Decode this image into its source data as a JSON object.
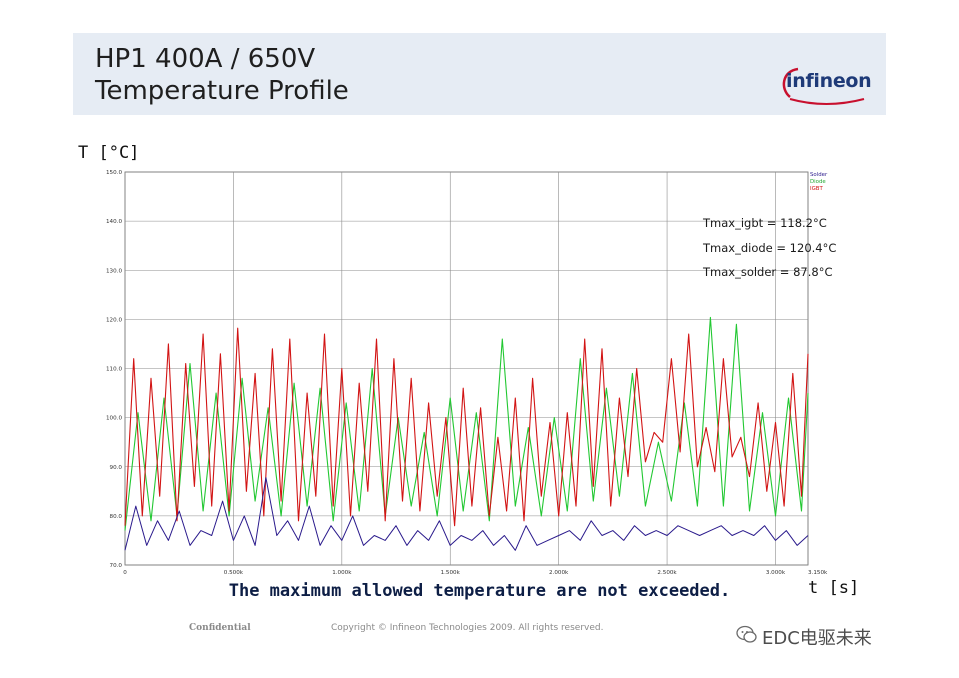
{
  "slide": {
    "title_line1": "HP1 400A / 650V",
    "title_line2": "Temperature Profile",
    "logo_text": "infineon",
    "caption": "The maximum allowed temperature are not exceeded.",
    "footer_confidential": "Confidential",
    "footer_copyright": "Copyright © Infineon Technologies 2009. All rights reserved.",
    "watermark": "EDC电驱未来",
    "y_unit_label": "T [°C]",
    "x_unit_label": "t [s]",
    "brand_color": "#1e3a78",
    "logo_arc_color": "#c8102e"
  },
  "chart_data": {
    "type": "line",
    "title": "HP1 400A / 650V Temperature Profile",
    "xlabel": "t [s]",
    "ylabel": "T [°C]",
    "xlim": [
      0,
      3150
    ],
    "ylim": [
      70,
      150
    ],
    "grid": true,
    "legend_position": "top-right",
    "yticks": [
      70,
      80,
      90,
      100,
      110,
      120,
      130,
      140,
      150
    ],
    "ytick_labels": [
      "70.0",
      "80.0",
      "90.0",
      "100.0",
      "110.0",
      "120.0",
      "130.0",
      "140.0",
      "150.0"
    ],
    "xticks": [
      0,
      500,
      1000,
      1500,
      2000,
      2500,
      3000,
      3150
    ],
    "xtick_labels": [
      "0",
      "0.500k",
      "1.000k",
      "1.500k",
      "2.000k",
      "2.500k",
      "3.000k",
      "3.150k"
    ],
    "legend": [
      "Solder",
      "Diode",
      "IGBT"
    ],
    "annotations": [
      "Tmax_igbt = 118.2°C",
      "Tmax_diode = 120.4°C",
      "Tmax_solder = 87.8°C"
    ],
    "series": [
      {
        "name": "IGBT",
        "color": "#d21414",
        "peak": 118.2,
        "x": [
          0,
          40,
          80,
          120,
          160,
          200,
          240,
          280,
          320,
          360,
          400,
          440,
          480,
          520,
          560,
          600,
          640,
          680,
          720,
          760,
          800,
          840,
          880,
          920,
          960,
          1000,
          1040,
          1080,
          1120,
          1160,
          1200,
          1240,
          1280,
          1320,
          1360,
          1400,
          1440,
          1480,
          1520,
          1560,
          1600,
          1640,
          1680,
          1720,
          1760,
          1800,
          1840,
          1880,
          1920,
          1960,
          2000,
          2040,
          2080,
          2120,
          2160,
          2200,
          2240,
          2280,
          2320,
          2360,
          2400,
          2440,
          2480,
          2520,
          2560,
          2600,
          2640,
          2680,
          2720,
          2760,
          2800,
          2840,
          2880,
          2920,
          2960,
          3000,
          3040,
          3080,
          3120,
          3150
        ],
        "values": [
          78,
          112,
          80,
          108,
          84,
          115,
          79,
          111,
          86,
          117,
          82,
          113,
          81,
          118.2,
          85,
          109,
          80,
          114,
          83,
          116,
          79,
          105,
          84,
          117,
          82,
          110,
          80,
          107,
          85,
          116,
          79,
          112,
          83,
          108,
          81,
          103,
          84,
          100,
          78,
          106,
          82,
          102,
          80,
          96,
          81,
          104,
          79,
          108,
          84,
          99,
          80,
          101,
          82,
          116,
          86,
          114,
          82,
          104,
          88,
          110,
          91,
          97,
          95,
          112,
          93,
          117,
          90,
          98,
          89,
          112,
          92,
          96,
          88,
          103,
          85,
          99,
          82,
          109,
          84,
          113
        ]
      },
      {
        "name": "Diode",
        "color": "#22c832",
        "peak": 120.4,
        "x": [
          0,
          60,
          120,
          180,
          240,
          300,
          360,
          420,
          480,
          540,
          600,
          660,
          720,
          780,
          840,
          900,
          960,
          1020,
          1080,
          1140,
          1200,
          1260,
          1320,
          1380,
          1440,
          1500,
          1560,
          1620,
          1680,
          1740,
          1800,
          1860,
          1920,
          1980,
          2040,
          2100,
          2160,
          2220,
          2280,
          2340,
          2400,
          2460,
          2520,
          2580,
          2640,
          2700,
          2760,
          2820,
          2880,
          2940,
          3000,
          3060,
          3120,
          3150
        ],
        "values": [
          77,
          101,
          79,
          104,
          80,
          111,
          81,
          105,
          80,
          108,
          83,
          102,
          80,
          107,
          82,
          106,
          79,
          103,
          81,
          110,
          80,
          100,
          82,
          97,
          80,
          104,
          81,
          101,
          79,
          116,
          82,
          98,
          80,
          100,
          81,
          112,
          83,
          106,
          84,
          109,
          82,
          95,
          83,
          103,
          82,
          120.4,
          82,
          119,
          81,
          101,
          80,
          104,
          81,
          105
        ]
      },
      {
        "name": "Solder",
        "color": "#2a1a8c",
        "peak": 87.8,
        "x": [
          0,
          50,
          100,
          150,
          200,
          250,
          300,
          350,
          400,
          450,
          500,
          550,
          600,
          650,
          700,
          750,
          800,
          850,
          900,
          950,
          1000,
          1050,
          1100,
          1150,
          1200,
          1250,
          1300,
          1350,
          1400,
          1450,
          1500,
          1550,
          1600,
          1650,
          1700,
          1750,
          1800,
          1850,
          1900,
          1950,
          2000,
          2050,
          2100,
          2150,
          2200,
          2250,
          2300,
          2350,
          2400,
          2450,
          2500,
          2550,
          2600,
          2650,
          2700,
          2750,
          2800,
          2850,
          2900,
          2950,
          3000,
          3050,
          3100,
          3150
        ],
        "values": [
          73,
          82,
          74,
          79,
          75,
          81,
          74,
          77,
          76,
          83,
          75,
          80,
          74,
          87.8,
          76,
          79,
          75,
          82,
          74,
          78,
          75,
          80,
          74,
          76,
          75,
          78,
          74,
          77,
          75,
          79,
          74,
          76,
          75,
          77,
          74,
          76,
          73,
          78,
          74,
          75,
          76,
          77,
          75,
          79,
          76,
          77,
          75,
          78,
          76,
          77,
          76,
          78,
          77,
          76,
          77,
          78,
          76,
          77,
          76,
          78,
          75,
          77,
          74,
          76
        ]
      }
    ]
  }
}
